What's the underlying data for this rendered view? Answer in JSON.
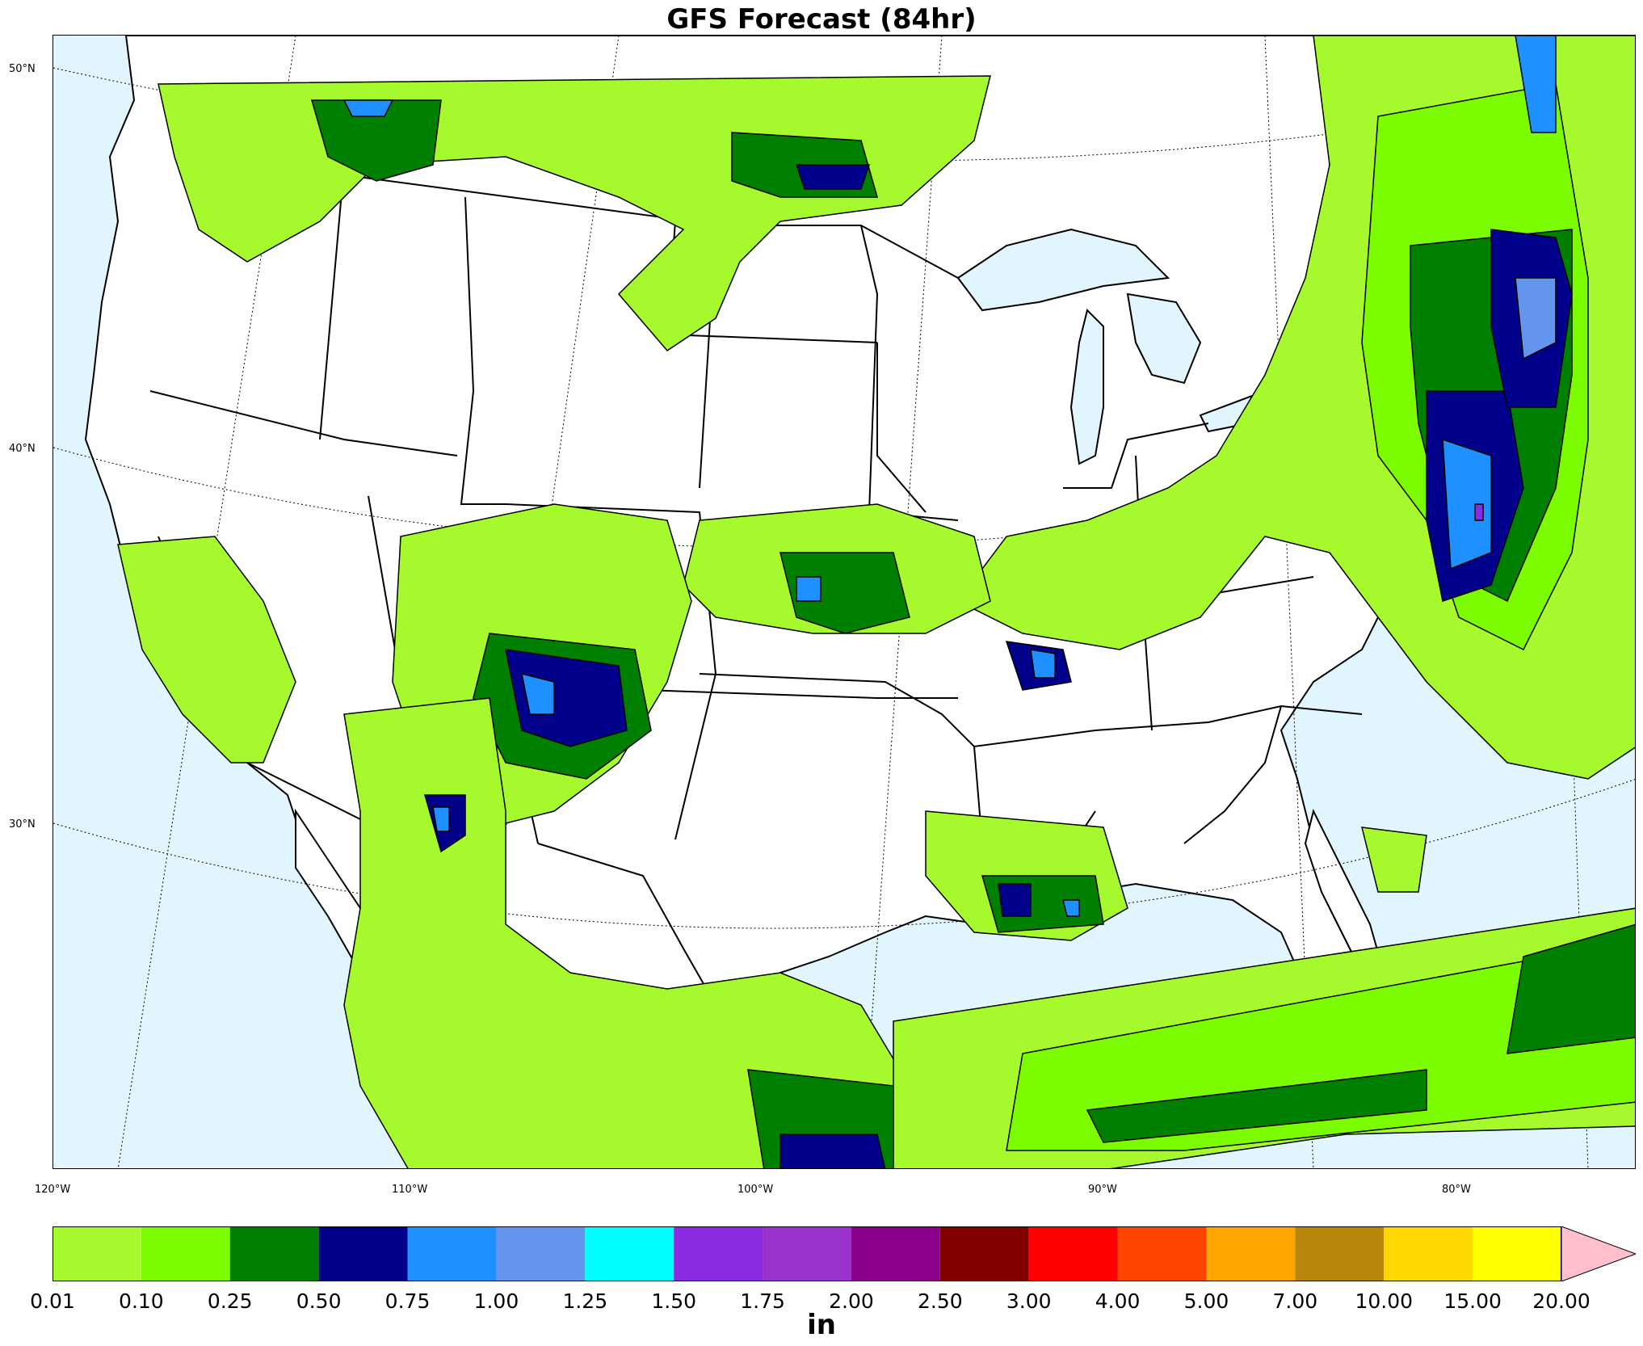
{
  "title": "GFS Forecast (84hr)",
  "lat_labels": [
    "50°N",
    "40°N",
    "30°N"
  ],
  "lon_labels": [
    "120°W",
    "110°W",
    "100°W",
    "90°W",
    "80°W"
  ],
  "colorbar": {
    "units": "in",
    "ticks": [
      "0.01",
      "0.10",
      "0.25",
      "0.50",
      "0.75",
      "1.00",
      "1.25",
      "1.50",
      "1.75",
      "2.00",
      "2.50",
      "3.00",
      "4.00",
      "5.00",
      "7.00",
      "10.00",
      "15.00",
      "20.00"
    ],
    "colors": [
      "#a6f92d",
      "#7cfc00",
      "#008000",
      "#00008b",
      "#1e90ff",
      "#6495ed",
      "#00ffff",
      "#8a2be2",
      "#9932cc",
      "#8b008b",
      "#800000",
      "#ff0000",
      "#ff4500",
      "#ffa500",
      "#b8860b",
      "#ffd700",
      "#ffff00"
    ],
    "extend_color": "#ffc0cb"
  },
  "map": {
    "ocean_color": "#e0f5fd",
    "land_color": "#ffffff",
    "projection": "lambert-conformal",
    "graticule": "dotted"
  }
}
